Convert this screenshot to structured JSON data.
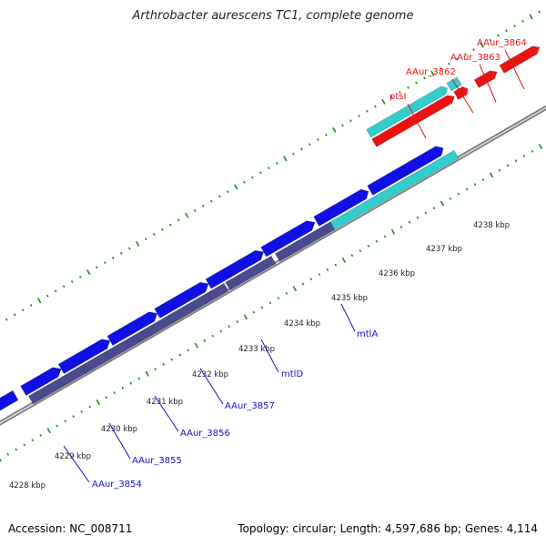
{
  "title": "Arthrobacter aurescens TC1, complete genome",
  "footer": {
    "accession": "Accession: NC_008711",
    "topology": "Topology: circular; Length: 4,597,686 bp; Genes: 4,114"
  },
  "colors": {
    "forward_gene": "#1010e6",
    "reverse_gene": "#4a4a8e",
    "cds_teal": "#33cccc",
    "highlight": "#ee1111",
    "backbone": "#808080",
    "tick": "#1a8c1a",
    "label_blue": "#1010cc",
    "label_red": "#ee1111"
  },
  "scale_labels": [
    "4228 kbp",
    "4229 kbp",
    "4230 kbp",
    "4231 kbp",
    "4232 kbp",
    "4233 kbp",
    "4234 kbp",
    "4235 kbp",
    "4236 kbp",
    "4237 kbp",
    "4238 kbp"
  ],
  "gene_labels": [
    {
      "text": "AAur_3854",
      "color": "blue"
    },
    {
      "text": "AAur_3855",
      "color": "blue"
    },
    {
      "text": "AAur_3856",
      "color": "blue"
    },
    {
      "text": "AAur_3857",
      "color": "blue"
    },
    {
      "text": "mtlD",
      "color": "blue"
    },
    {
      "text": "mtlA",
      "color": "blue"
    },
    {
      "text": "ptsI",
      "color": "red"
    },
    {
      "text": "AAur_3862",
      "color": "red"
    },
    {
      "text": "AAur_3863",
      "color": "red"
    },
    {
      "text": "AAur_3864",
      "color": "red"
    }
  ]
}
